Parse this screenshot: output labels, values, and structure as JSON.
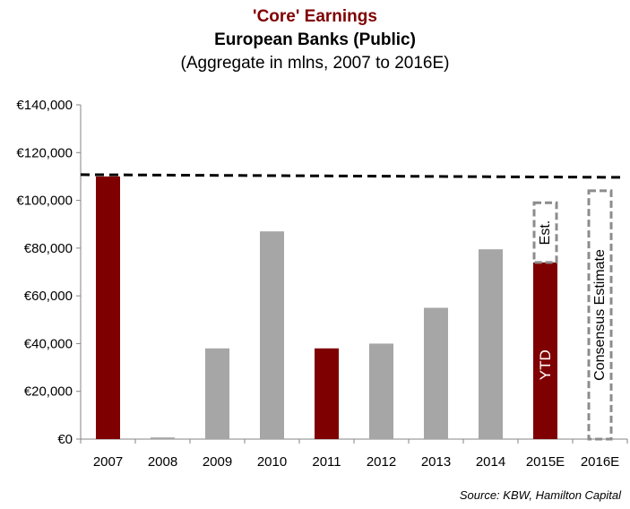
{
  "chart_data": {
    "type": "bar",
    "title": "'Core' Earnings",
    "subtitle": "European Banks (Public)",
    "subtitle2": "(Aggregate in mlns, 2007 to 2016E)",
    "categories": [
      "2007",
      "2008",
      "2009",
      "2010",
      "2011",
      "2012",
      "2013",
      "2014",
      "2015E",
      "2016E"
    ],
    "values": [
      110000,
      700,
      38000,
      87000,
      38000,
      40000,
      55000,
      79500,
      74000,
      null
    ],
    "bar_colors": [
      "#7f0000",
      "#a6a6a6",
      "#a6a6a6",
      "#a6a6a6",
      "#7f0000",
      "#a6a6a6",
      "#a6a6a6",
      "#a6a6a6",
      "#7f0000",
      "#a6a6a6"
    ],
    "ylim": [
      0,
      140000
    ],
    "yticks": [
      0,
      20000,
      40000,
      60000,
      80000,
      100000,
      120000,
      140000
    ],
    "ytick_labels": [
      "€0",
      "€20,000",
      "€40,000",
      "€60,000",
      "€80,000",
      "€100,000",
      "€120,000",
      "€140,000"
    ],
    "reference_line": {
      "value": 110000,
      "style": "dashed",
      "color": "#000000"
    },
    "estimate_boxes": [
      {
        "category": "2015E",
        "from": 74000,
        "to": 99000,
        "label": "Est."
      },
      {
        "category": "2016E",
        "from": 0,
        "to": 104000,
        "label": "Consensus Estimate"
      }
    ],
    "bar_annotations": [
      {
        "category": "2015E",
        "label": "YTD"
      }
    ],
    "grid": false
  },
  "source": "Source: KBW, Hamilton Capital"
}
